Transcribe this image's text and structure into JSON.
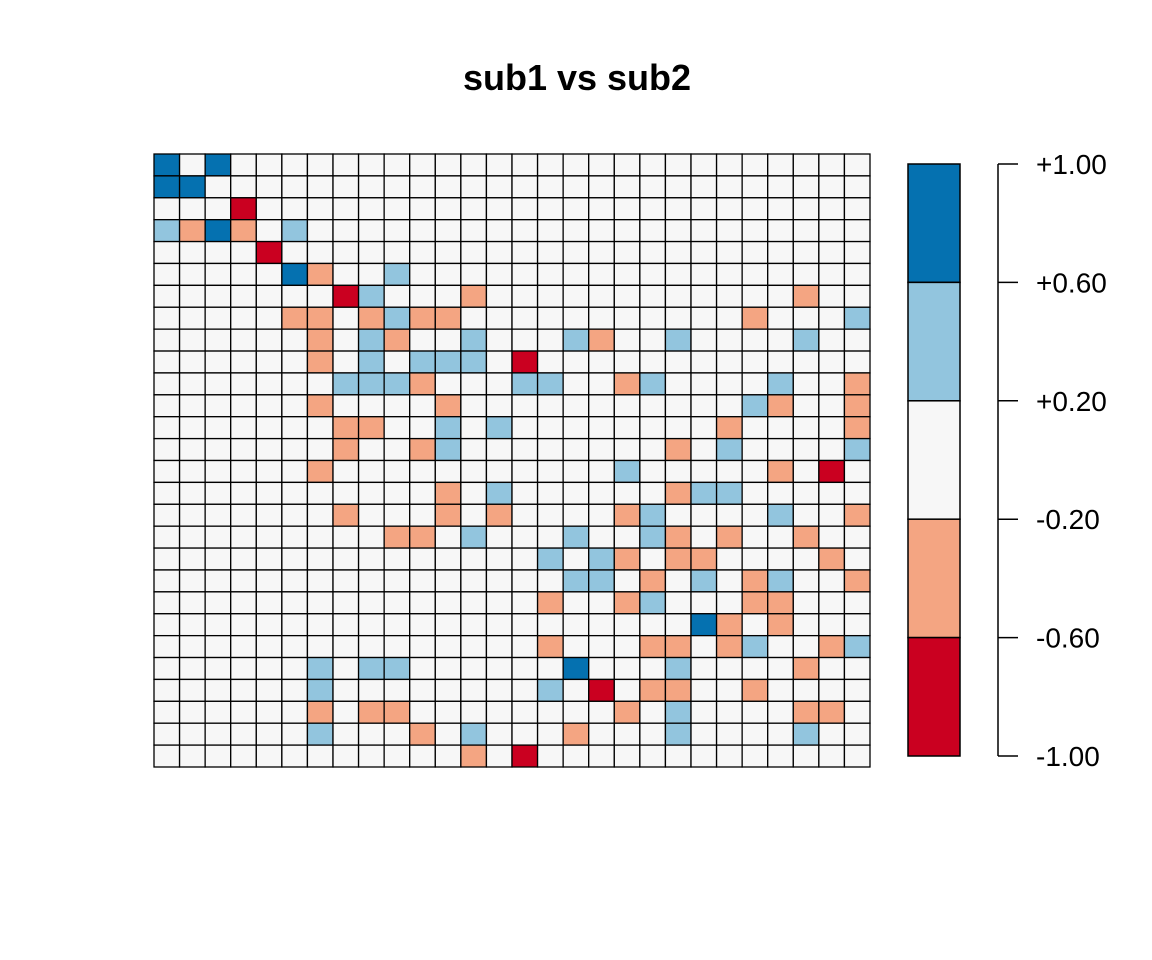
{
  "chart_data": {
    "type": "heatmap",
    "title": "sub1 vs sub2",
    "n_rows": 28,
    "n_cols": 28,
    "color_scale": {
      "breaks": [
        -1.0,
        -0.6,
        -0.2,
        0.2,
        0.6,
        1.0
      ],
      "colors": [
        "#CA0020",
        "#F4A582",
        "#F7F7F7",
        "#92C5DE",
        "#0571B0"
      ],
      "tick_labels": [
        "+1.00",
        "+0.60",
        "+0.20",
        "-0.20",
        "-0.60",
        "-1.00"
      ]
    },
    "cells": [
      [
        0,
        0,
        2
      ],
      [
        0,
        2,
        2
      ],
      [
        1,
        0,
        2
      ],
      [
        1,
        1,
        2
      ],
      [
        2,
        3,
        -2
      ],
      [
        3,
        0,
        1
      ],
      [
        3,
        1,
        -1
      ],
      [
        3,
        2,
        2
      ],
      [
        3,
        3,
        -1
      ],
      [
        3,
        5,
        1
      ],
      [
        4,
        4,
        -2
      ],
      [
        5,
        5,
        2
      ],
      [
        5,
        6,
        -1
      ],
      [
        5,
        9,
        1
      ],
      [
        6,
        7,
        -2
      ],
      [
        6,
        8,
        1
      ],
      [
        6,
        12,
        -1
      ],
      [
        6,
        25,
        -1
      ],
      [
        7,
        5,
        -1
      ],
      [
        7,
        6,
        -1
      ],
      [
        7,
        8,
        -1
      ],
      [
        7,
        9,
        1
      ],
      [
        7,
        10,
        -1
      ],
      [
        7,
        11,
        -1
      ],
      [
        7,
        23,
        -1
      ],
      [
        7,
        27,
        1
      ],
      [
        8,
        6,
        -1
      ],
      [
        8,
        8,
        1
      ],
      [
        8,
        9,
        -1
      ],
      [
        8,
        12,
        1
      ],
      [
        8,
        16,
        1
      ],
      [
        8,
        17,
        -1
      ],
      [
        8,
        20,
        1
      ],
      [
        8,
        25,
        1
      ],
      [
        9,
        6,
        -1
      ],
      [
        9,
        8,
        1
      ],
      [
        9,
        10,
        1
      ],
      [
        9,
        11,
        1
      ],
      [
        9,
        12,
        1
      ],
      [
        9,
        14,
        -2
      ],
      [
        10,
        7,
        1
      ],
      [
        10,
        8,
        1
      ],
      [
        10,
        9,
        1
      ],
      [
        10,
        10,
        -1
      ],
      [
        10,
        14,
        1
      ],
      [
        10,
        15,
        1
      ],
      [
        10,
        18,
        -1
      ],
      [
        10,
        19,
        1
      ],
      [
        10,
        24,
        1
      ],
      [
        10,
        27,
        -1
      ],
      [
        11,
        6,
        -1
      ],
      [
        11,
        11,
        -1
      ],
      [
        11,
        23,
        1
      ],
      [
        11,
        24,
        -1
      ],
      [
        11,
        27,
        -1
      ],
      [
        12,
        7,
        -1
      ],
      [
        12,
        8,
        -1
      ],
      [
        12,
        11,
        1
      ],
      [
        12,
        13,
        1
      ],
      [
        12,
        22,
        -1
      ],
      [
        12,
        27,
        -1
      ],
      [
        13,
        7,
        -1
      ],
      [
        13,
        10,
        -1
      ],
      [
        13,
        11,
        1
      ],
      [
        13,
        20,
        -1
      ],
      [
        13,
        22,
        1
      ],
      [
        13,
        27,
        1
      ],
      [
        14,
        6,
        -1
      ],
      [
        14,
        18,
        1
      ],
      [
        14,
        24,
        -1
      ],
      [
        14,
        26,
        -2
      ],
      [
        15,
        11,
        -1
      ],
      [
        15,
        13,
        1
      ],
      [
        15,
        20,
        -1
      ],
      [
        15,
        21,
        1
      ],
      [
        15,
        22,
        1
      ],
      [
        16,
        7,
        -1
      ],
      [
        16,
        11,
        -1
      ],
      [
        16,
        13,
        -1
      ],
      [
        16,
        18,
        -1
      ],
      [
        16,
        19,
        1
      ],
      [
        16,
        24,
        1
      ],
      [
        16,
        27,
        -1
      ],
      [
        17,
        9,
        -1
      ],
      [
        17,
        10,
        -1
      ],
      [
        17,
        12,
        1
      ],
      [
        17,
        16,
        1
      ],
      [
        17,
        19,
        1
      ],
      [
        17,
        20,
        -1
      ],
      [
        17,
        22,
        -1
      ],
      [
        17,
        25,
        -1
      ],
      [
        18,
        15,
        1
      ],
      [
        18,
        17,
        1
      ],
      [
        18,
        18,
        -1
      ],
      [
        18,
        20,
        -1
      ],
      [
        18,
        21,
        -1
      ],
      [
        18,
        26,
        -1
      ],
      [
        19,
        16,
        1
      ],
      [
        19,
        17,
        1
      ],
      [
        19,
        19,
        -1
      ],
      [
        19,
        21,
        1
      ],
      [
        19,
        23,
        -1
      ],
      [
        19,
        24,
        1
      ],
      [
        19,
        27,
        -1
      ],
      [
        20,
        15,
        -1
      ],
      [
        20,
        18,
        -1
      ],
      [
        20,
        19,
        1
      ],
      [
        20,
        23,
        -1
      ],
      [
        20,
        24,
        -1
      ],
      [
        21,
        21,
        2
      ],
      [
        21,
        22,
        -1
      ],
      [
        21,
        24,
        -1
      ],
      [
        22,
        15,
        -1
      ],
      [
        22,
        19,
        -1
      ],
      [
        22,
        20,
        -1
      ],
      [
        22,
        22,
        -1
      ],
      [
        22,
        23,
        1
      ],
      [
        22,
        26,
        -1
      ],
      [
        22,
        27,
        1
      ],
      [
        23,
        6,
        1
      ],
      [
        23,
        8,
        1
      ],
      [
        23,
        9,
        1
      ],
      [
        23,
        16,
        2
      ],
      [
        23,
        20,
        1
      ],
      [
        23,
        25,
        -1
      ],
      [
        24,
        6,
        1
      ],
      [
        24,
        15,
        1
      ],
      [
        24,
        17,
        -2
      ],
      [
        24,
        19,
        -1
      ],
      [
        24,
        20,
        -1
      ],
      [
        24,
        23,
        -1
      ],
      [
        25,
        6,
        -1
      ],
      [
        25,
        8,
        -1
      ],
      [
        25,
        9,
        -1
      ],
      [
        25,
        18,
        -1
      ],
      [
        25,
        20,
        1
      ],
      [
        25,
        25,
        -1
      ],
      [
        25,
        26,
        -1
      ],
      [
        26,
        6,
        1
      ],
      [
        26,
        10,
        -1
      ],
      [
        26,
        12,
        1
      ],
      [
        26,
        16,
        -1
      ],
      [
        26,
        20,
        1
      ],
      [
        26,
        25,
        1
      ],
      [
        27,
        12,
        -1
      ],
      [
        27,
        14,
        -2
      ]
    ]
  }
}
